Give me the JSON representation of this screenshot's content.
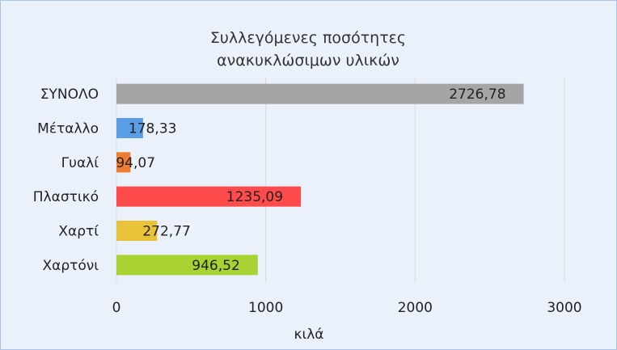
{
  "chart_data": {
    "type": "barh",
    "title": "Συλλεγόμενες ποσότητες ανακυκλώσιμων υλικών",
    "x_label": "κιλά",
    "categories": [
      "ΣΥΝΟΛΟ",
      "Μέταλλο",
      "Γυαλί",
      "Πλαστικό",
      "Χαρτί",
      "Χαρτόνι"
    ],
    "values": [
      2726.78,
      178.33,
      94.07,
      1235.09,
      272.77,
      946.52
    ],
    "value_labels": [
      "2726,78",
      "178,33",
      "94,07",
      "1235,09",
      "272,77",
      "946,52"
    ],
    "colors": [
      "#a5a5a5",
      "#5b9ee6",
      "#ed7d31",
      "#ff4b4b",
      "#e8c33a",
      "#a9d233"
    ],
    "xlim": [
      0,
      3000
    ],
    "xticks": [
      0,
      1000,
      2000,
      3000
    ],
    "grid": true
  }
}
